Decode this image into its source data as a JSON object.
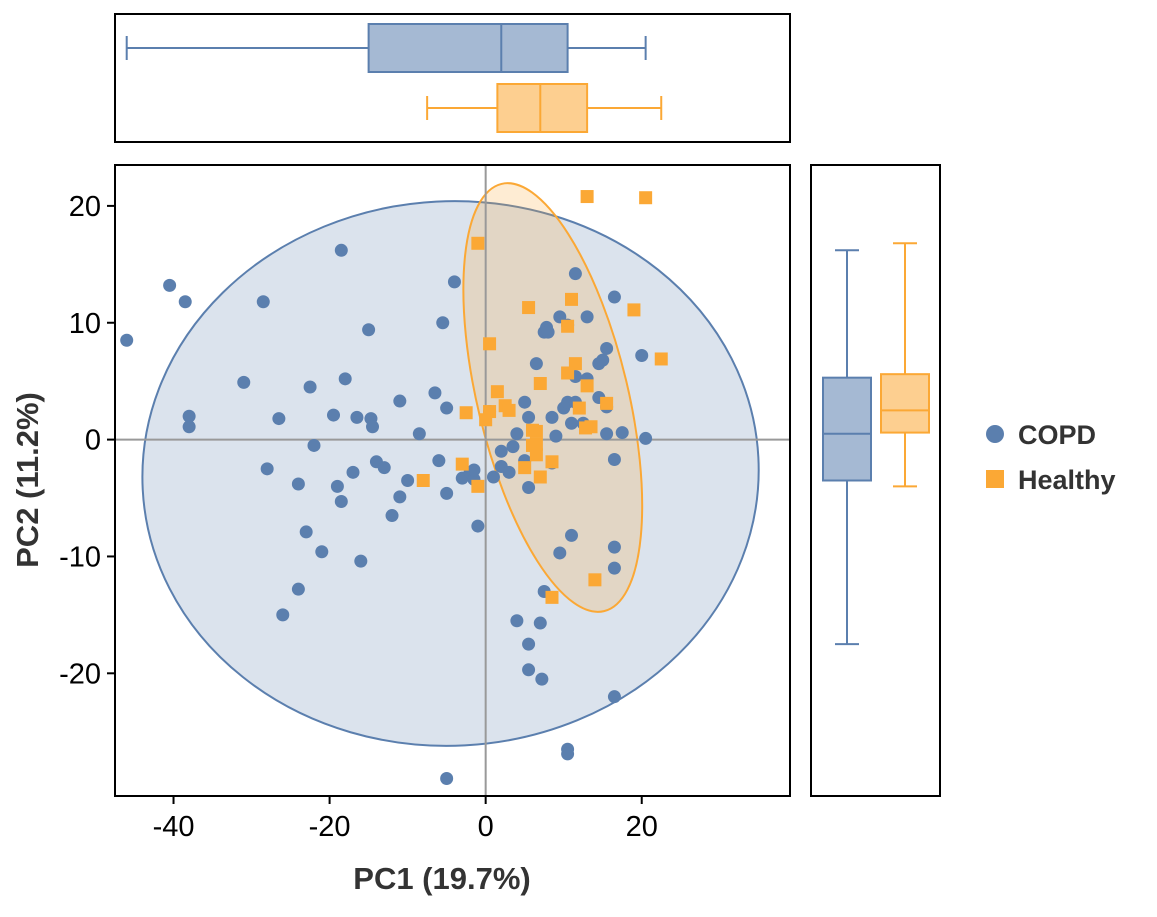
{
  "chart_data": {
    "type": "scatter",
    "xlabel": "PC1  (19.7%)",
    "ylabel": "PC2  (11.2%)",
    "xlim": [
      -47.5,
      39
    ],
    "ylim": [
      -30.5,
      23.5
    ],
    "xticks": [
      -40,
      -20,
      0,
      20
    ],
    "yticks": [
      -20,
      -10,
      0,
      10,
      20
    ],
    "grid": false,
    "reference_lines": {
      "x": 0,
      "y": 0
    },
    "legend": {
      "position": "right"
    },
    "colors": {
      "COPD": "#5B7FAE",
      "Healthy": "#FBA835"
    },
    "series": [
      {
        "name": "COPD",
        "marker": "circle",
        "color": "#5B7FAE",
        "points": [
          [
            -46,
            8.5
          ],
          [
            -40.5,
            13.2
          ],
          [
            -38.5,
            11.8
          ],
          [
            -38,
            2
          ],
          [
            -38,
            1.1
          ],
          [
            -31,
            4.9
          ],
          [
            -28.5,
            11.8
          ],
          [
            -28,
            -2.5
          ],
          [
            -26.5,
            1.8
          ],
          [
            -26,
            -15
          ],
          [
            -24,
            -12.8
          ],
          [
            -24,
            -3.8
          ],
          [
            -23,
            -7.9
          ],
          [
            -22.5,
            4.5
          ],
          [
            -22,
            -0.5
          ],
          [
            -21,
            -9.6
          ],
          [
            -19.5,
            2.1
          ],
          [
            -19,
            -4
          ],
          [
            -18.5,
            16.2
          ],
          [
            -18.5,
            -5.3
          ],
          [
            -18,
            5.2
          ],
          [
            -17,
            -2.8
          ],
          [
            -16.5,
            1.9
          ],
          [
            -16,
            -10.4
          ],
          [
            -15,
            9.4
          ],
          [
            -14.7,
            1.8
          ],
          [
            -14.5,
            1.1
          ],
          [
            -14,
            -1.9
          ],
          [
            -13,
            -2.4
          ],
          [
            -12,
            -6.5
          ],
          [
            -11,
            -4.9
          ],
          [
            -11,
            3.3
          ],
          [
            -10,
            -3.5
          ],
          [
            -8.5,
            0.5
          ],
          [
            -6.5,
            4
          ],
          [
            -6,
            -1.8
          ],
          [
            -5.5,
            10
          ],
          [
            -5,
            2.7
          ],
          [
            -5,
            -4.6
          ],
          [
            -4,
            13.5
          ],
          [
            -3,
            -3.3
          ],
          [
            -2,
            -2.8
          ],
          [
            -1.5,
            -3.4
          ],
          [
            -1.5,
            -2.6
          ],
          [
            -1,
            -7.4
          ],
          [
            0.5,
            2.4
          ],
          [
            1,
            -3.2
          ],
          [
            2,
            -2.3
          ],
          [
            2,
            -1
          ],
          [
            3,
            -2.8
          ],
          [
            3.5,
            -0.6
          ],
          [
            4,
            0.5
          ],
          [
            4,
            -15.5
          ],
          [
            5,
            3.2
          ],
          [
            5,
            -1.8
          ],
          [
            5.5,
            -4.1
          ],
          [
            5.5,
            -17.5
          ],
          [
            5.5,
            -19.7
          ],
          [
            5.5,
            1.9
          ],
          [
            6.5,
            6.5
          ],
          [
            7,
            -15.7
          ],
          [
            7.2,
            -20.5
          ],
          [
            7.5,
            -13
          ],
          [
            7.5,
            9.2
          ],
          [
            7.8,
            9.6
          ],
          [
            8,
            9.2
          ],
          [
            8.5,
            1.9
          ],
          [
            8.5,
            -2
          ],
          [
            9,
            0.3
          ],
          [
            9.5,
            10.5
          ],
          [
            9.5,
            -9.7
          ],
          [
            10,
            2.7
          ],
          [
            10.5,
            3.2
          ],
          [
            10.5,
            9.8
          ],
          [
            10.5,
            -26.5
          ],
          [
            10.5,
            -26.9
          ],
          [
            11,
            -8.2
          ],
          [
            11,
            1.4
          ],
          [
            11.5,
            3.2
          ],
          [
            11.5,
            5.4
          ],
          [
            11.5,
            14.2
          ],
          [
            12.5,
            1.4
          ],
          [
            13,
            5.2
          ],
          [
            13,
            10.5
          ],
          [
            14.5,
            6.5
          ],
          [
            14.5,
            3.6
          ],
          [
            15,
            6.8
          ],
          [
            15.5,
            2.8
          ],
          [
            15.5,
            7.8
          ],
          [
            15.5,
            0.5
          ],
          [
            16.5,
            12.2
          ],
          [
            16.5,
            -1.7
          ],
          [
            16.5,
            -9.2
          ],
          [
            16.5,
            -11
          ],
          [
            16.5,
            -22
          ],
          [
            17.5,
            0.6
          ],
          [
            20,
            7.2
          ],
          [
            20.5,
            0.1
          ],
          [
            -5,
            -29
          ]
        ]
      },
      {
        "name": "Healthy",
        "marker": "square",
        "color": "#FBA835",
        "points": [
          [
            13,
            20.8
          ],
          [
            20.5,
            20.7
          ],
          [
            -1,
            16.8
          ],
          [
            11,
            12
          ],
          [
            5.5,
            11.3
          ],
          [
            19,
            11.1
          ],
          [
            10.5,
            9.7
          ],
          [
            0.5,
            8.2
          ],
          [
            11.5,
            6.5
          ],
          [
            10.5,
            5.7
          ],
          [
            7,
            4.8
          ],
          [
            13,
            4.6
          ],
          [
            1.5,
            4.1
          ],
          [
            2.5,
            2.9
          ],
          [
            3,
            2.5
          ],
          [
            0.5,
            2.4
          ],
          [
            0,
            1.7
          ],
          [
            -2.5,
            2.3
          ],
          [
            12,
            2.7
          ],
          [
            15.5,
            3.1
          ],
          [
            13.5,
            1.1
          ],
          [
            12.8,
            1
          ],
          [
            22.5,
            6.9
          ],
          [
            6,
            0.8
          ],
          [
            6.5,
            0.7
          ],
          [
            6,
            -0.5
          ],
          [
            6.5,
            -0.4
          ],
          [
            6.5,
            -1.3
          ],
          [
            5,
            -2.4
          ],
          [
            8.5,
            -1.9
          ],
          [
            7,
            -3.2
          ],
          [
            -3,
            -2.1
          ],
          [
            -1,
            -4
          ],
          [
            -8,
            -3.5
          ],
          [
            14,
            -12
          ],
          [
            8.5,
            -13.5
          ]
        ]
      }
    ],
    "ellipses": [
      {
        "series": "COPD",
        "center": [
          -4.5,
          -2.9
        ],
        "semi_axes": [
          39.5,
          23.3
        ],
        "angle_deg": -3
      },
      {
        "series": "Healthy",
        "center": [
          8.6,
          3.6
        ],
        "semi_axes": [
          9.65,
          18.8
        ],
        "angle_deg": -13.5
      }
    ],
    "boxplots_pc1": [
      {
        "series": "COPD",
        "whisker_low": -46,
        "q1": -15,
        "median": 2,
        "q3": 10.5,
        "whisker_high": 20.5
      },
      {
        "series": "Healthy",
        "whisker_low": -7.5,
        "q1": 1.5,
        "median": 7,
        "q3": 13,
        "whisker_high": 22.5
      }
    ],
    "boxplots_pc2": [
      {
        "series": "COPD",
        "whisker_low": -17.5,
        "q1": -3.5,
        "median": 0.5,
        "q3": 5.3,
        "whisker_high": 16.2
      },
      {
        "series": "Healthy",
        "whisker_low": -4,
        "q1": 0.6,
        "median": 2.5,
        "q3": 5.6,
        "whisker_high": 16.8
      }
    ]
  }
}
